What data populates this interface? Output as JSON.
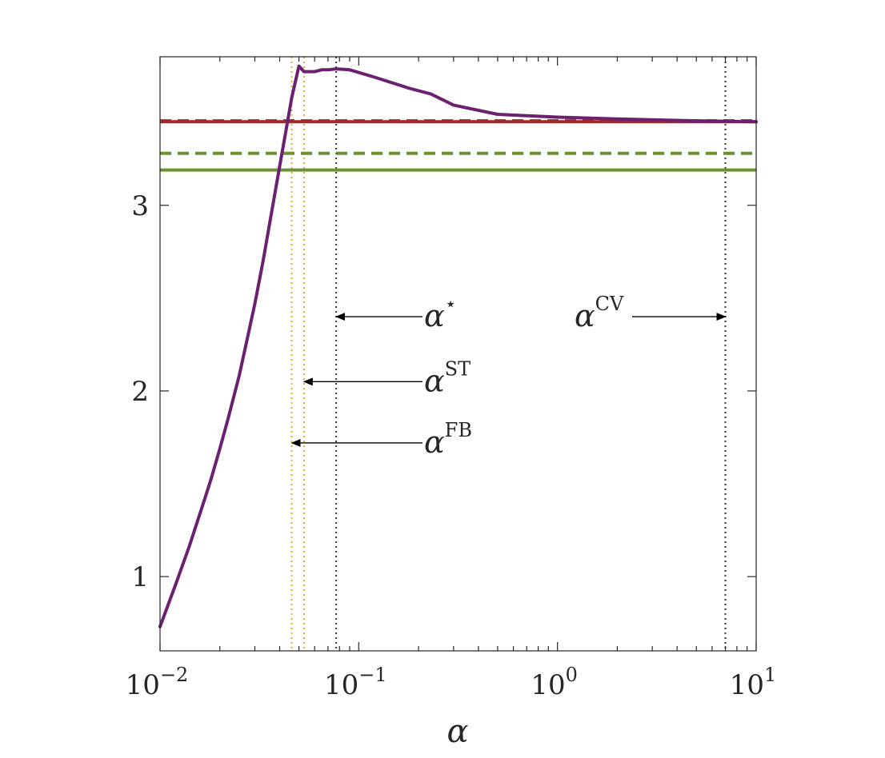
{
  "chart_data": {
    "type": "line",
    "xlabel": "α",
    "ylabel": "",
    "title": "",
    "x_scale": "log",
    "xlim": [
      0.01,
      10
    ],
    "ylim": [
      0.6,
      3.8
    ],
    "grid": false,
    "x_ticks": [
      {
        "value": 0.01,
        "base": "10",
        "exp": "−2"
      },
      {
        "value": 0.1,
        "base": "10",
        "exp": "−1"
      },
      {
        "value": 1,
        "base": "10",
        "exp": "0"
      },
      {
        "value": 10,
        "base": "10",
        "exp": "1"
      }
    ],
    "y_ticks": [
      {
        "value": 1,
        "label": "1"
      },
      {
        "value": 2,
        "label": "2"
      },
      {
        "value": 3,
        "label": "3"
      }
    ],
    "curve": {
      "color": "#6b2070",
      "x": [
        0.01,
        0.012,
        0.014,
        0.016,
        0.018,
        0.02,
        0.022,
        0.025,
        0.028,
        0.03,
        0.033,
        0.036,
        0.04,
        0.043,
        0.046,
        0.05,
        0.053,
        0.056,
        0.058,
        0.06,
        0.065,
        0.07,
        0.077,
        0.09,
        0.12,
        0.18,
        0.23,
        0.3,
        0.5,
        1,
        2,
        5,
        10
      ],
      "y": [
        0.73,
        0.96,
        1.16,
        1.35,
        1.52,
        1.69,
        1.85,
        2.08,
        2.32,
        2.47,
        2.7,
        2.93,
        3.21,
        3.4,
        3.58,
        3.75,
        3.72,
        3.72,
        3.72,
        3.72,
        3.73,
        3.73,
        3.735,
        3.73,
        3.69,
        3.63,
        3.6,
        3.54,
        3.49,
        3.475,
        3.465,
        3.455,
        3.45
      ]
    },
    "hlines": [
      {
        "y": 3.45,
        "color": "#a12a2d",
        "style": "solid"
      },
      {
        "y": 3.455,
        "color": "#a12a2d",
        "style": "dashed"
      },
      {
        "y": 3.28,
        "color": "#6f9231",
        "style": "dashed"
      },
      {
        "y": 3.19,
        "color": "#6f9231",
        "style": "solid"
      }
    ],
    "vlines": [
      {
        "x": 0.046,
        "color": "#e0a935",
        "style": "dotted"
      },
      {
        "x": 0.053,
        "color": "#e0a935",
        "style": "dotted"
      },
      {
        "x": 0.077,
        "color": "#333333",
        "style": "dotted"
      },
      {
        "x": 7.0,
        "color": "#333333",
        "style": "dotted"
      }
    ],
    "annotations": [
      {
        "base": "α",
        "sup": "⋆",
        "target_x": 0.077,
        "y": 2.4,
        "side": "right"
      },
      {
        "base": "α",
        "sup": "ST",
        "target_x": 0.053,
        "y": 2.05,
        "side": "right"
      },
      {
        "base": "α",
        "sup": "FB",
        "target_x": 0.046,
        "y": 1.72,
        "side": "right"
      },
      {
        "base": "α",
        "sup": "CV",
        "target_x": 7.0,
        "y": 2.4,
        "side": "left"
      }
    ]
  }
}
